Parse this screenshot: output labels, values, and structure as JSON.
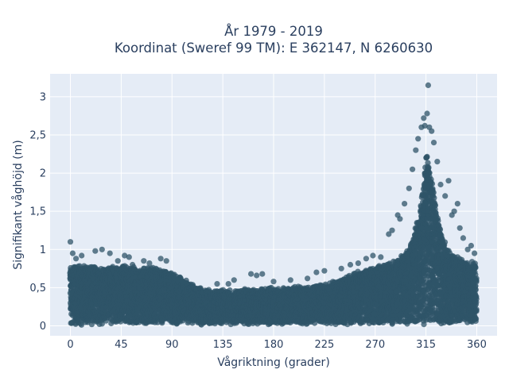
{
  "chart_data": {
    "type": "scatter",
    "title_lines": [
      "År 1979 - 2019",
      "Koordinat (Sweref 99 TM): E 362147, N 6260630"
    ],
    "xlabel": "Vågriktning (grader)",
    "ylabel": "Signifikant våghöjd (m)",
    "xlim": [
      -18,
      378
    ],
    "ylim": [
      -0.13,
      3.3
    ],
    "x_ticks": [
      0,
      45,
      90,
      135,
      180,
      225,
      270,
      315,
      360
    ],
    "x_tick_labels": [
      "0",
      "45",
      "90",
      "135",
      "180",
      "225",
      "270",
      "315",
      "360"
    ],
    "y_ticks": [
      0,
      0.5,
      1,
      1.5,
      2,
      2.5,
      3
    ],
    "y_tick_labels": [
      "0",
      "0,5",
      "1",
      "1,5",
      "2",
      "2,5",
      "3"
    ],
    "grid": true,
    "marker_color": "#2f5468",
    "plot_background": "#e5ecf6",
    "upper_envelope": {
      "direction": [
        0,
        15,
        30,
        45,
        60,
        75,
        90,
        100,
        110,
        120,
        135,
        150,
        165,
        180,
        195,
        210,
        225,
        240,
        255,
        270,
        280,
        290,
        300,
        305,
        310,
        313,
        315,
        318,
        322,
        326,
        330,
        335,
        340,
        345,
        350,
        355,
        360
      ],
      "height": [
        0.75,
        0.78,
        0.74,
        0.78,
        0.73,
        0.75,
        0.68,
        0.6,
        0.5,
        0.45,
        0.45,
        0.45,
        0.46,
        0.48,
        0.48,
        0.5,
        0.52,
        0.6,
        0.7,
        0.75,
        0.8,
        0.85,
        1.0,
        1.2,
        1.55,
        1.9,
        2.3,
        2.05,
        1.7,
        1.35,
        1.15,
        0.98,
        0.9,
        0.88,
        0.85,
        0.82,
        0.78
      ]
    },
    "outliers": [
      {
        "x": 0,
        "y": 1.1
      },
      {
        "x": 2,
        "y": 0.95
      },
      {
        "x": 5,
        "y": 0.88
      },
      {
        "x": 10,
        "y": 0.92
      },
      {
        "x": 22,
        "y": 0.98
      },
      {
        "x": 28,
        "y": 1.0
      },
      {
        "x": 35,
        "y": 0.95
      },
      {
        "x": 42,
        "y": 0.85
      },
      {
        "x": 48,
        "y": 0.92
      },
      {
        "x": 52,
        "y": 0.9
      },
      {
        "x": 55,
        "y": 0.8
      },
      {
        "x": 65,
        "y": 0.85
      },
      {
        "x": 70,
        "y": 0.82
      },
      {
        "x": 80,
        "y": 0.88
      },
      {
        "x": 85,
        "y": 0.85
      },
      {
        "x": 95,
        "y": 0.6
      },
      {
        "x": 100,
        "y": 0.58
      },
      {
        "x": 130,
        "y": 0.55
      },
      {
        "x": 140,
        "y": 0.55
      },
      {
        "x": 145,
        "y": 0.6
      },
      {
        "x": 160,
        "y": 0.68
      },
      {
        "x": 165,
        "y": 0.66
      },
      {
        "x": 170,
        "y": 0.68
      },
      {
        "x": 180,
        "y": 0.58
      },
      {
        "x": 195,
        "y": 0.6
      },
      {
        "x": 210,
        "y": 0.62
      },
      {
        "x": 218,
        "y": 0.7
      },
      {
        "x": 225,
        "y": 0.72
      },
      {
        "x": 240,
        "y": 0.75
      },
      {
        "x": 248,
        "y": 0.8
      },
      {
        "x": 255,
        "y": 0.82
      },
      {
        "x": 262,
        "y": 0.88
      },
      {
        "x": 268,
        "y": 0.92
      },
      {
        "x": 275,
        "y": 0.9
      },
      {
        "x": 282,
        "y": 1.2
      },
      {
        "x": 285,
        "y": 1.25
      },
      {
        "x": 290,
        "y": 1.45
      },
      {
        "x": 292,
        "y": 1.4
      },
      {
        "x": 296,
        "y": 1.6
      },
      {
        "x": 300,
        "y": 1.8
      },
      {
        "x": 303,
        "y": 2.05
      },
      {
        "x": 306,
        "y": 2.3
      },
      {
        "x": 308,
        "y": 2.45
      },
      {
        "x": 311,
        "y": 2.6
      },
      {
        "x": 313,
        "y": 2.72
      },
      {
        "x": 314,
        "y": 2.62
      },
      {
        "x": 316,
        "y": 2.78
      },
      {
        "x": 317,
        "y": 3.15
      },
      {
        "x": 318,
        "y": 2.6
      },
      {
        "x": 320,
        "y": 2.55
      },
      {
        "x": 322,
        "y": 2.4
      },
      {
        "x": 325,
        "y": 2.15
      },
      {
        "x": 328,
        "y": 1.85
      },
      {
        "x": 332,
        "y": 1.7
      },
      {
        "x": 335,
        "y": 1.9
      },
      {
        "x": 338,
        "y": 1.45
      },
      {
        "x": 340,
        "y": 1.5
      },
      {
        "x": 343,
        "y": 1.6
      },
      {
        "x": 345,
        "y": 1.28
      },
      {
        "x": 348,
        "y": 1.15
      },
      {
        "x": 352,
        "y": 1.0
      },
      {
        "x": 355,
        "y": 1.05
      },
      {
        "x": 358,
        "y": 0.95
      }
    ]
  }
}
